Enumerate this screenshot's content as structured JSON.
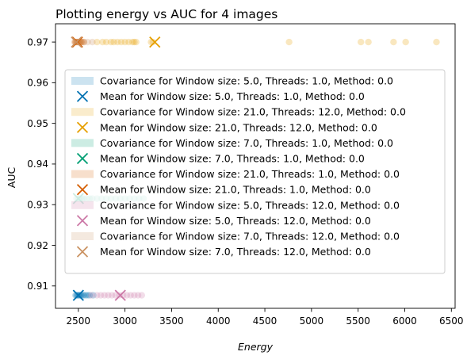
{
  "chart_data": {
    "type": "scatter",
    "title": "Plotting energy vs AUC for 4 images",
    "xlabel": "Energy",
    "ylabel": "AUC",
    "xlim": [
      2255,
      6540
    ],
    "ylim": [
      0.9045,
      0.9745
    ],
    "x_ticks": [
      2500,
      3000,
      3500,
      4000,
      4500,
      5000,
      5500,
      6000,
      6500
    ],
    "x_tick_labels": [
      "2500",
      "3000",
      "3500",
      "4000",
      "4500",
      "5000",
      "5500",
      "6000",
      "6500"
    ],
    "y_ticks": [
      0.91,
      0.92,
      0.93,
      0.94,
      0.95,
      0.96,
      0.97
    ],
    "y_tick_labels": [
      "0.91",
      "0.92",
      "0.93",
      "0.94",
      "0.95",
      "0.96",
      "0.97"
    ],
    "grid": false,
    "legend_position": "center-left",
    "series": [
      {
        "color": "#0072b2",
        "y": 0.9077,
        "points_x": [
          2470,
          2480,
          2490,
          2500,
          2510,
          2520,
          2530,
          2545,
          2560,
          2580,
          2600,
          2620,
          2660
        ],
        "mean": [
          2500,
          0.9077
        ],
        "covariance_label": "Covariance for Window size: 5.0, Threads: 1.0, Method: 0.0",
        "mean_label": "Mean for Window size: 5.0, Threads: 1.0, Method: 0.0"
      },
      {
        "color": "#e69f00",
        "y": 0.97,
        "points_x": [
          2700,
          2760,
          2800,
          2850,
          2880,
          2920,
          2960,
          3000,
          3040,
          3080,
          3100,
          3120,
          3280,
          3300,
          4760,
          5530,
          5610,
          5880,
          6010,
          6340
        ],
        "mean": [
          3320,
          0.97
        ],
        "covariance_label": "Covariance for Window size: 21.0, Threads: 12.0, Method: 0.0",
        "mean_label": "Mean for Window size: 21.0, Threads: 12.0, Method: 0.0"
      },
      {
        "color": "#009e73",
        "y": 0.9315,
        "points_x": [
          2480,
          2500,
          2520,
          2540,
          2560,
          2590,
          2620,
          2650,
          2700,
          2750,
          2800,
          2850,
          2900,
          2950,
          3000,
          3050,
          3100,
          3150,
          3200
        ],
        "mean": [
          2500,
          0.9315
        ],
        "covariance_label": "Covariance for Window size: 7.0, Threads: 1.0, Method: 0.0",
        "mean_label": "Mean for Window size: 7.0, Threads: 1.0, Method: 0.0"
      },
      {
        "color": "#d55e00",
        "y": 0.97,
        "points_x": [
          2460,
          2470,
          2480,
          2490,
          2500,
          2510,
          2520,
          2530,
          2540,
          2560
        ],
        "mean": [
          2490,
          0.97
        ],
        "covariance_label": "Covariance for Window size: 21.0, Threads: 1.0, Method: 0.0",
        "mean_label": "Mean for Window size: 21.0, Threads: 1.0, Method: 0.0"
      },
      {
        "color": "#cc79a7",
        "y": 0.9077,
        "points_x": [
          2640,
          2700,
          2740,
          2780,
          2820,
          2860,
          2900,
          2940,
          2980,
          3020,
          3060,
          3100,
          3140,
          3180
        ],
        "mean": [
          2950,
          0.9077
        ],
        "covariance_label": "Covariance for Window size: 5.0, Threads: 12.0, Method: 0.0",
        "mean_label": "Mean for Window size: 5.0, Threads: 12.0, Method: 0.0"
      },
      {
        "color": "#ca9161",
        "y": 0.97,
        "points_x": [
          2470,
          2500,
          2530,
          2560,
          2600,
          2650
        ],
        "mean": [
          2480,
          0.97
        ],
        "covariance_label": "Covariance for Window size: 7.0, Threads: 12.0, Method: 0.0",
        "mean_label": "Mean for Window size: 7.0, Threads: 12.0, Method: 0.0"
      }
    ]
  }
}
